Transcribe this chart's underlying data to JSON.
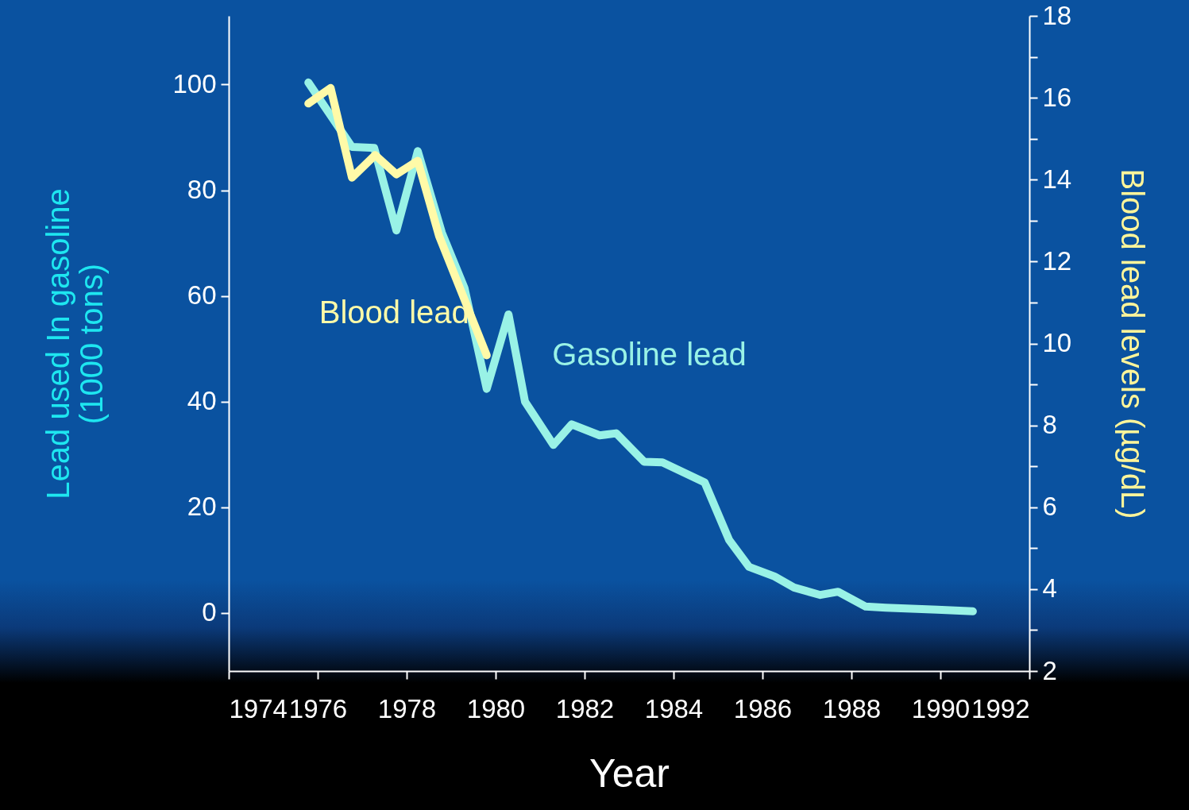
{
  "chart_data": {
    "type": "line",
    "xlabel": "Year",
    "ylabel": "Lead used In gasoline\n(1000 tons)",
    "y2label": "Blood lead levels (µg/dL)",
    "xlim": [
      1974,
      1992
    ],
    "xticks": [
      1974,
      1976,
      1978,
      1980,
      1982,
      1984,
      1986,
      1988,
      1990,
      1992
    ],
    "ylim": [
      -11,
      113
    ],
    "yticks": [
      0,
      20,
      40,
      60,
      80,
      100
    ],
    "y2lim": [
      2,
      18
    ],
    "y2ticks": [
      2,
      {
        "value": 3,
        "label": null
      },
      4,
      {
        "value": 5,
        "label": null
      },
      6,
      {
        "value": 7,
        "label": null
      },
      8,
      {
        "value": 9,
        "label": null
      },
      10,
      {
        "value": 11,
        "label": null
      },
      12,
      {
        "value": 13,
        "label": null
      },
      14,
      {
        "value": 15,
        "label": null
      },
      16,
      {
        "value": 17,
        "label": null
      },
      18
    ],
    "legend": false,
    "marker": "none",
    "line_style": "solid",
    "series": [
      {
        "name": "Gasoline lead",
        "color": "#99f2e6",
        "x": [
          1975.79,
          1976.77,
          1977.27,
          1977.77,
          1978.25,
          1978.79,
          1979.3,
          1979.8,
          1980.29,
          1980.66,
          1981.3,
          1981.71,
          1982.34,
          1982.71,
          1983.34,
          1983.75,
          1984.7,
          1985.25,
          1985.7,
          1986.27,
          1986.71,
          1987.3,
          1987.7,
          1988.32,
          1988.77,
          1989.93,
          1990.73
        ],
        "values": [
          100.4,
          88.2,
          88,
          72.4,
          87.4,
          72,
          61.5,
          42.4,
          56.5,
          40,
          31.8,
          35.7,
          33.6,
          34,
          28.6,
          28.5,
          24.7,
          13.8,
          8.7,
          6.9,
          4.8,
          3.4,
          4,
          1.2,
          1,
          0.6,
          0.3
        ]
      },
      {
        "name": "Blood lead",
        "color": "#fffaa8",
        "axis": "y2",
        "x": [
          1975.79,
          1976.29,
          1976.77,
          1977.29,
          1977.77,
          1978.25,
          1978.73,
          1979.8
        ],
        "values": [
          15.86,
          16.24,
          14.05,
          14.6,
          14.13,
          14.46,
          12.62,
          9.71
        ]
      }
    ]
  }
}
